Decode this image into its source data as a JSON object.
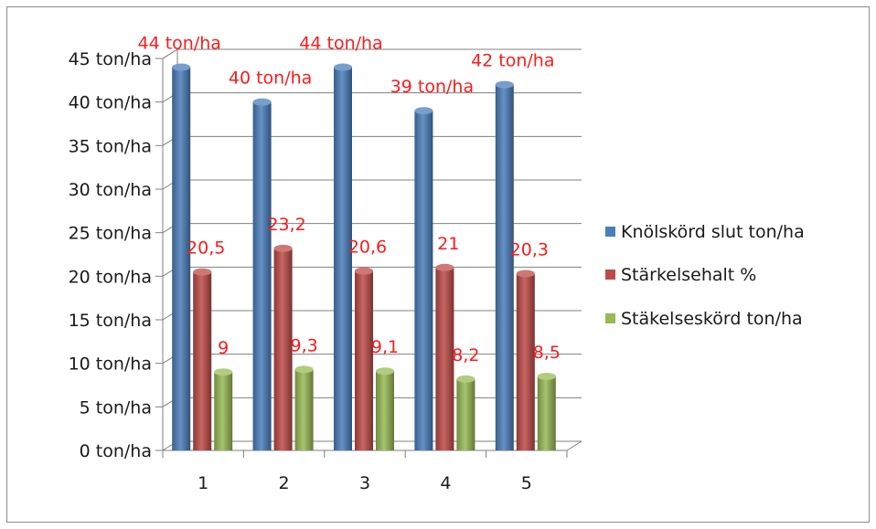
{
  "chart_data": {
    "type": "bar",
    "title": "",
    "xlabel": "",
    "ylabel": "",
    "categories": [
      "1",
      "2",
      "3",
      "4",
      "5"
    ],
    "ylim": [
      0,
      45
    ],
    "y_tick_values": [
      0,
      5,
      10,
      15,
      20,
      25,
      30,
      35,
      40,
      45
    ],
    "y_tick_labels": [
      "0 ton/ha",
      "5 ton/ha",
      "10 ton/ha",
      "15 ton/ha",
      "20 ton/ha",
      "25 ton/ha",
      "30 ton/ha",
      "35 ton/ha",
      "40 ton/ha",
      "45 ton/ha"
    ],
    "grid": true,
    "legend_position": "right",
    "series": [
      {
        "name": "Knölskörd slut ton/ha",
        "color": "#4a7ebb",
        "values": [
          44,
          40,
          44,
          39,
          42
        ],
        "labels": [
          "44 ton/ha",
          "40 ton/ha",
          "44 ton/ha",
          "39 ton/ha",
          "42 ton/ha"
        ]
      },
      {
        "name": "Stärkelsehalt %",
        "color": "#be4b48",
        "values": [
          20.5,
          23.2,
          20.6,
          21,
          20.3
        ],
        "labels": [
          "20,5",
          "23,2",
          "20,6",
          "21",
          "20,3"
        ]
      },
      {
        "name": "Stäkelseskörd ton/ha",
        "color": "#98b954",
        "values": [
          9,
          9.3,
          9.1,
          8.2,
          8.5
        ],
        "labels": [
          "9",
          "9,3",
          "9,1",
          "8,2",
          "8,5"
        ]
      }
    ],
    "data_label_color": "#ff1a1a"
  }
}
